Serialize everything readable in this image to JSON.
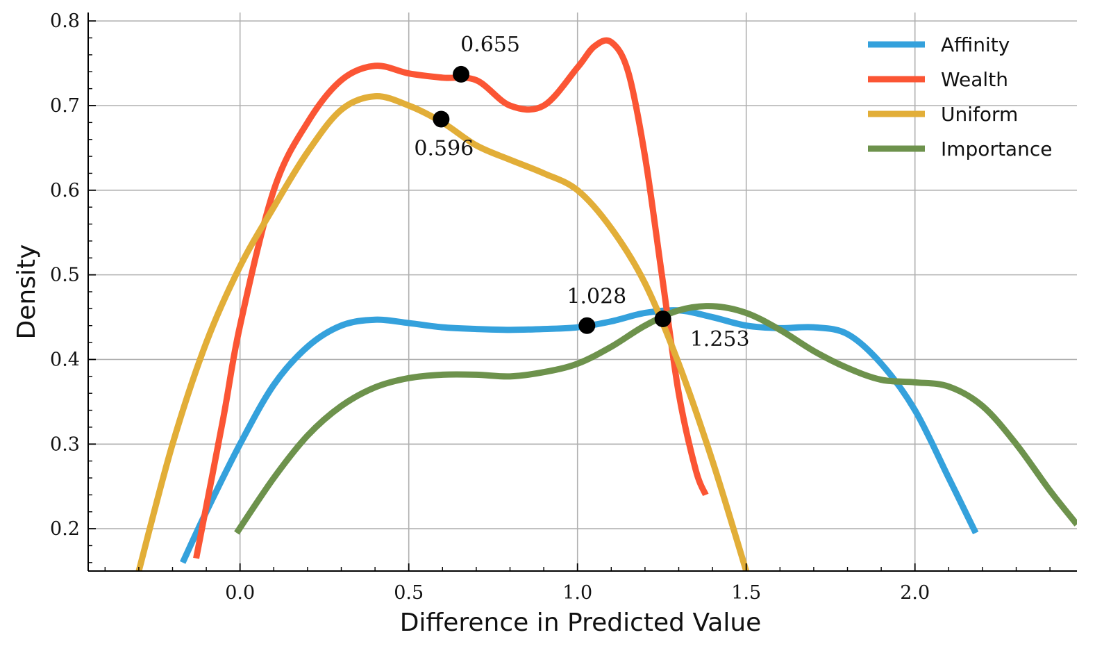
{
  "chart_data": {
    "type": "line",
    "title": "",
    "xlabel": "Difference in Predicted Value",
    "ylabel": "Density",
    "xlim": [
      -0.45,
      2.48
    ],
    "ylim": [
      0.15,
      0.81
    ],
    "grid": true,
    "legend_position": "top-right",
    "x_ticks": [
      0.0,
      0.5,
      1.0,
      1.5,
      2.0
    ],
    "x_tick_labels": [
      "0.0",
      "0.5",
      "1.0",
      "1.5",
      "2.0"
    ],
    "y_ticks": [
      0.2,
      0.3,
      0.4,
      0.5,
      0.6,
      0.7,
      0.8
    ],
    "y_tick_labels": [
      "0.2",
      "0.3",
      "0.4",
      "0.5",
      "0.6",
      "0.7",
      "0.8"
    ],
    "series": [
      {
        "name": "Affinity",
        "color": "#34a1dc",
        "x": [
          -0.17,
          -0.1,
          0.0,
          0.1,
          0.2,
          0.3,
          0.4,
          0.5,
          0.6,
          0.7,
          0.8,
          0.9,
          1.0,
          1.1,
          1.2,
          1.3,
          1.4,
          1.5,
          1.6,
          1.7,
          1.8,
          1.9,
          2.0,
          2.1,
          2.18
        ],
        "y": [
          0.16,
          0.22,
          0.3,
          0.37,
          0.415,
          0.44,
          0.447,
          0.443,
          0.438,
          0.436,
          0.435,
          0.436,
          0.438,
          0.445,
          0.455,
          0.458,
          0.45,
          0.44,
          0.437,
          0.438,
          0.43,
          0.395,
          0.34,
          0.26,
          0.195
        ]
      },
      {
        "name": "Wealth",
        "color": "#fb5534",
        "x": [
          -0.13,
          -0.05,
          0.0,
          0.1,
          0.2,
          0.3,
          0.4,
          0.5,
          0.6,
          0.7,
          0.8,
          0.9,
          1.0,
          1.05,
          1.1,
          1.15,
          1.2,
          1.25,
          1.3,
          1.35,
          1.38
        ],
        "y": [
          0.165,
          0.33,
          0.44,
          0.6,
          0.68,
          0.73,
          0.747,
          0.738,
          0.733,
          0.73,
          0.7,
          0.7,
          0.745,
          0.77,
          0.775,
          0.74,
          0.64,
          0.5,
          0.36,
          0.27,
          0.24
        ]
      },
      {
        "name": "Uniform",
        "color": "#e2ae38",
        "x": [
          -0.3,
          -0.2,
          -0.1,
          0.0,
          0.1,
          0.2,
          0.3,
          0.4,
          0.5,
          0.6,
          0.7,
          0.8,
          0.9,
          1.0,
          1.1,
          1.2,
          1.3,
          1.4,
          1.5
        ],
        "y": [
          0.15,
          0.3,
          0.42,
          0.51,
          0.58,
          0.645,
          0.695,
          0.711,
          0.7,
          0.68,
          0.653,
          0.636,
          0.62,
          0.6,
          0.555,
          0.49,
          0.395,
          0.28,
          0.15
        ]
      },
      {
        "name": "Importance",
        "color": "#6d924c",
        "x": [
          -0.01,
          0.1,
          0.2,
          0.3,
          0.4,
          0.5,
          0.6,
          0.7,
          0.8,
          0.9,
          1.0,
          1.1,
          1.2,
          1.3,
          1.4,
          1.5,
          1.6,
          1.7,
          1.8,
          1.9,
          2.0,
          2.1,
          2.2,
          2.3,
          2.4,
          2.48
        ],
        "y": [
          0.195,
          0.26,
          0.31,
          0.345,
          0.367,
          0.378,
          0.382,
          0.382,
          0.38,
          0.385,
          0.395,
          0.415,
          0.44,
          0.458,
          0.463,
          0.455,
          0.435,
          0.41,
          0.39,
          0.376,
          0.373,
          0.368,
          0.345,
          0.3,
          0.245,
          0.205
        ]
      }
    ],
    "markers": [
      {
        "x": 0.655,
        "y": 0.737,
        "label": "0.655",
        "label_pos": "above-right"
      },
      {
        "x": 0.596,
        "y": 0.684,
        "label": "0.596",
        "label_pos": "below"
      },
      {
        "x": 1.028,
        "y": 0.44,
        "label": "1.028",
        "label_pos": "above"
      },
      {
        "x": 1.253,
        "y": 0.448,
        "label": "1.253",
        "label_pos": "below-right"
      }
    ]
  }
}
